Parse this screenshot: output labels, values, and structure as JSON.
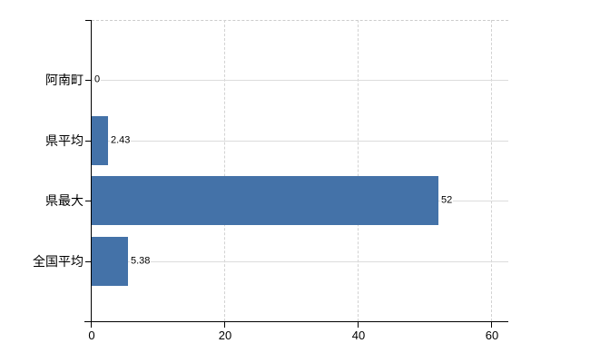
{
  "chart_data": {
    "type": "bar",
    "orientation": "horizontal",
    "title": "",
    "categories": [
      "阿南町",
      "県平均",
      "県最大",
      "全国平均"
    ],
    "values": [
      0,
      2.43,
      52,
      5.38
    ],
    "value_labels": [
      "0",
      "2.43",
      "52",
      "5.38"
    ],
    "x_ticks": [
      0,
      20,
      40,
      60
    ],
    "x_tick_labels": [
      "0",
      "20",
      "40",
      "60"
    ],
    "xlim": [
      0,
      60
    ],
    "grid": true,
    "legend": false,
    "colors": {
      "bar": "#4472a8",
      "axis": "#000000",
      "hgridline": "#dcdcdc",
      "vgridline": "#d2d2d2",
      "plot_border_dashed": "#cccccc",
      "text": "#000000",
      "background": "#ffffff"
    }
  }
}
